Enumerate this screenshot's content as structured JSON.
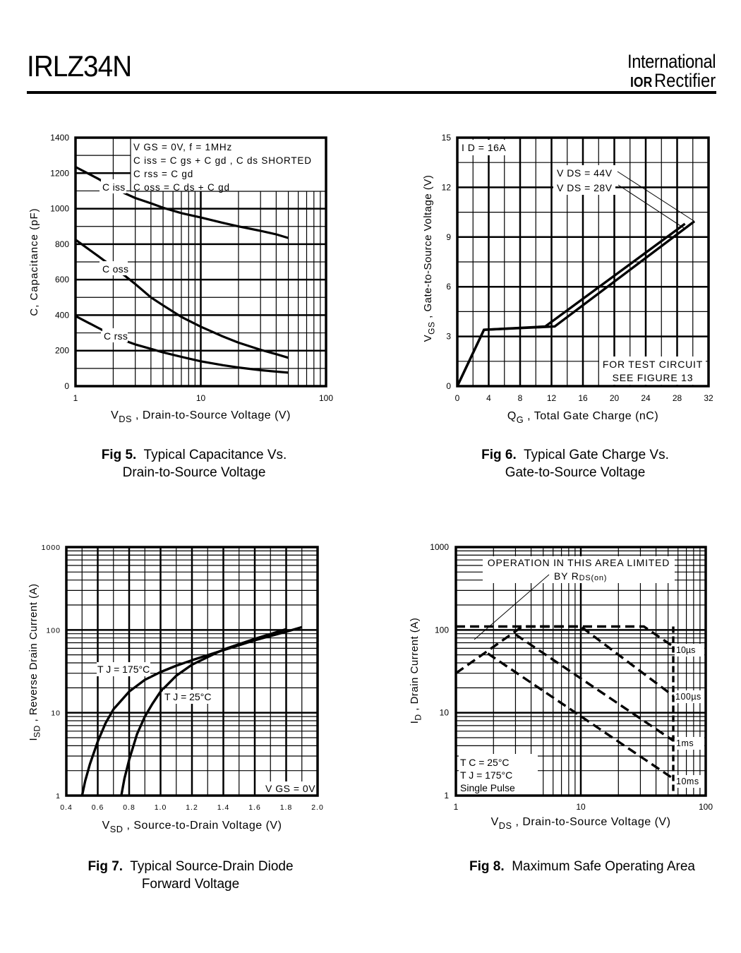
{
  "header": {
    "part_number": "IRLZ34N",
    "logo_line1": "International",
    "logo_mark": "IOR",
    "logo_line2": "Rectifier"
  },
  "captions": [
    {
      "fig": "Fig 5.",
      "line1": "Typical Capacitance Vs.",
      "line2": "Drain-to-Source Voltage"
    },
    {
      "fig": "Fig 6.",
      "line1": "Typical Gate Charge Vs.",
      "line2": "Gate-to-Source Voltage"
    },
    {
      "fig": "Fig 7.",
      "line1": "Typical Source-Drain Diode",
      "line2": "Forward Voltage"
    },
    {
      "fig": "Fig 8.",
      "line1": "Maximum Safe Operating Area",
      "line2": ""
    }
  ],
  "chart_data": [
    {
      "id": "fig5",
      "type": "line",
      "xscale": "log",
      "xlim": [
        1,
        100
      ],
      "ylim": [
        0,
        1400
      ],
      "xticks": [
        "1",
        "10",
        "100"
      ],
      "yticks": [
        "0",
        "200",
        "400",
        "600",
        "800",
        "1000",
        "1200",
        "1400"
      ],
      "xlabel": "V_DS , Drain-to-Source Voltage (V)",
      "xlabel_main": "V",
      "xlabel_sub": "DS",
      "xlabel_rest": " , Drain-to-Source Voltage (V)",
      "ylabel": "C, Capacitance (pF)",
      "annotation": [
        "V GS = 0V,       f = 1MHz",
        "C iss = C gs + C gd ,  C ds  SHORTED",
        "C rss = C gd",
        "C oss = C ds + C gd"
      ],
      "series": [
        {
          "name": "Ciss",
          "label": "C iss",
          "x": [
            1,
            1.5,
            2,
            2.5,
            3,
            4,
            5,
            7,
            10,
            15,
            20,
            30,
            40,
            50
          ],
          "y": [
            1235,
            1170,
            1120,
            1085,
            1060,
            1030,
            1005,
            975,
            950,
            920,
            900,
            875,
            855,
            835
          ]
        },
        {
          "name": "Coss",
          "label": "C oss",
          "x": [
            1,
            1.5,
            2,
            2.5,
            3,
            4,
            5,
            7,
            10,
            15,
            20,
            30,
            40,
            50
          ],
          "y": [
            825,
            735,
            670,
            620,
            575,
            500,
            455,
            390,
            335,
            280,
            245,
            205,
            180,
            160
          ]
        },
        {
          "name": "Crss",
          "label": "C rss",
          "x": [
            1,
            1.5,
            2,
            2.5,
            3,
            4,
            5,
            7,
            10,
            15,
            20,
            30,
            40,
            50
          ],
          "y": [
            395,
            330,
            285,
            255,
            235,
            210,
            190,
            165,
            140,
            118,
            105,
            90,
            82,
            76
          ]
        }
      ]
    },
    {
      "id": "fig6",
      "type": "line",
      "xlim": [
        0,
        32
      ],
      "ylim": [
        0,
        15
      ],
      "xticks": [
        "0",
        "4",
        "8",
        "12",
        "16",
        "20",
        "24",
        "28",
        "32"
      ],
      "yticks": [
        "0",
        "3",
        "6",
        "9",
        "12",
        "15"
      ],
      "xlabel": "Q_G , Total Gate Charge (nC)",
      "xlabel_main": "Q",
      "xlabel_sub": "G",
      "xlabel_rest": " , Total Gate Charge (nC)",
      "ylabel": "V_GS , Gate-to-Source Voltage (V)",
      "ylabel_main": "V",
      "ylabel_sub": "GS",
      "ylabel_rest": " ,  Gate-to-Source Voltage (V)",
      "annotation_id": "I D  =  16A",
      "annotation_test": [
        "FOR TEST CIRCUIT",
        "SEE FIGURE 13"
      ],
      "series": [
        {
          "name": "VDS = 28V",
          "label": "V DS  =  28V",
          "x": [
            0,
            3.4,
            11.2,
            29
          ],
          "y": [
            0,
            3.4,
            3.6,
            9.8
          ]
        },
        {
          "name": "VDS = 44V",
          "label": "V DS  =  44V",
          "x": [
            0,
            3.4,
            12.4,
            30.2
          ],
          "y": [
            0,
            3.4,
            3.6,
            9.95
          ]
        }
      ]
    },
    {
      "id": "fig7",
      "type": "line",
      "yscale": "log",
      "xlim": [
        0.4,
        2.0
      ],
      "ylim": [
        1,
        1000
      ],
      "xticks": [
        "0.4",
        "0.6",
        "0.8",
        "1.0",
        "1.2",
        "1.4",
        "1.6",
        "1.8",
        "2.0"
      ],
      "yticks": [
        "1",
        "10",
        "100",
        "1000"
      ],
      "xlabel": "V_SD , Source-to-Drain Voltage (V)",
      "xlabel_main": "V",
      "xlabel_sub": "SD",
      "xlabel_rest": " , Source-to-Drain Voltage (V)",
      "ylabel": "I_SD , Reverse Drain Current (A)",
      "ylabel_main": "I",
      "ylabel_sub": "SD",
      "ylabel_rest": " ,  Reverse Drain Current (A)",
      "annotation": "V GS  =  0V",
      "series": [
        {
          "name": "TJ = 175°C",
          "label": "T J = 175°C",
          "x": [
            0.5,
            0.52,
            0.55,
            0.6,
            0.65,
            0.7,
            0.8,
            0.9,
            1.0,
            1.1,
            1.2,
            1.4,
            1.6,
            1.8,
            1.9
          ],
          "y": [
            1,
            1.5,
            2.4,
            4.5,
            7.5,
            11,
            18,
            25,
            31,
            37,
            43,
            57,
            75,
            95,
            108
          ]
        },
        {
          "name": "TJ = 25°C",
          "label": "T J = 25°C",
          "x": [
            0.75,
            0.77,
            0.8,
            0.85,
            0.9,
            0.95,
            1.0,
            1.1,
            1.2,
            1.4,
            1.6,
            1.8
          ],
          "y": [
            1,
            1.6,
            2.7,
            5.5,
            9,
            13,
            18,
            28,
            38,
            58,
            78,
            102
          ]
        }
      ]
    },
    {
      "id": "fig8",
      "type": "line",
      "xscale": "log",
      "yscale": "log",
      "xlim": [
        1,
        100
      ],
      "ylim": [
        1,
        1000
      ],
      "xticks": [
        "1",
        "10",
        "100"
      ],
      "yticks": [
        "1",
        "10",
        "100",
        "1000"
      ],
      "xlabel": "V_DS , Drain-to-Source Voltage (V)",
      "xlabel_main": "V",
      "xlabel_sub": "DS",
      "xlabel_rest": " , Drain-to-Source Voltage (V)",
      "ylabel": "I_D , Drain Current (A)",
      "ylabel_main": "I",
      "ylabel_sub": "D",
      "ylabel_rest": " ,  Drain Current (A)",
      "annotation_area": [
        "OPERATION IN THIS AREA LIMITED",
        "BY R"
      ],
      "annotation_area_sub": "DS(on)",
      "annotation_cond": [
        "T C   =  25°C",
        "T J   =  175°C",
        "Single Pulse"
      ],
      "series": [
        {
          "name": "10us",
          "label": "10µs",
          "x": [
            1,
            32,
            55
          ],
          "y": [
            110,
            110,
            63
          ]
        },
        {
          "name": "100us",
          "label": "100µs",
          "x": [
            1,
            3.4,
            10,
            55
          ],
          "y": [
            30,
            110,
            110,
            16
          ]
        },
        {
          "name": "1ms",
          "label": "1ms",
          "x": [
            3,
            55
          ],
          "y": [
            88,
            4.6
          ]
        },
        {
          "name": "10ms",
          "label": "10ms",
          "x": [
            1.8,
            55
          ],
          "y": [
            52,
            1.6
          ]
        },
        {
          "name": "limit",
          "label": "",
          "x": [
            55,
            55
          ],
          "y": [
            110,
            1
          ]
        }
      ]
    }
  ]
}
